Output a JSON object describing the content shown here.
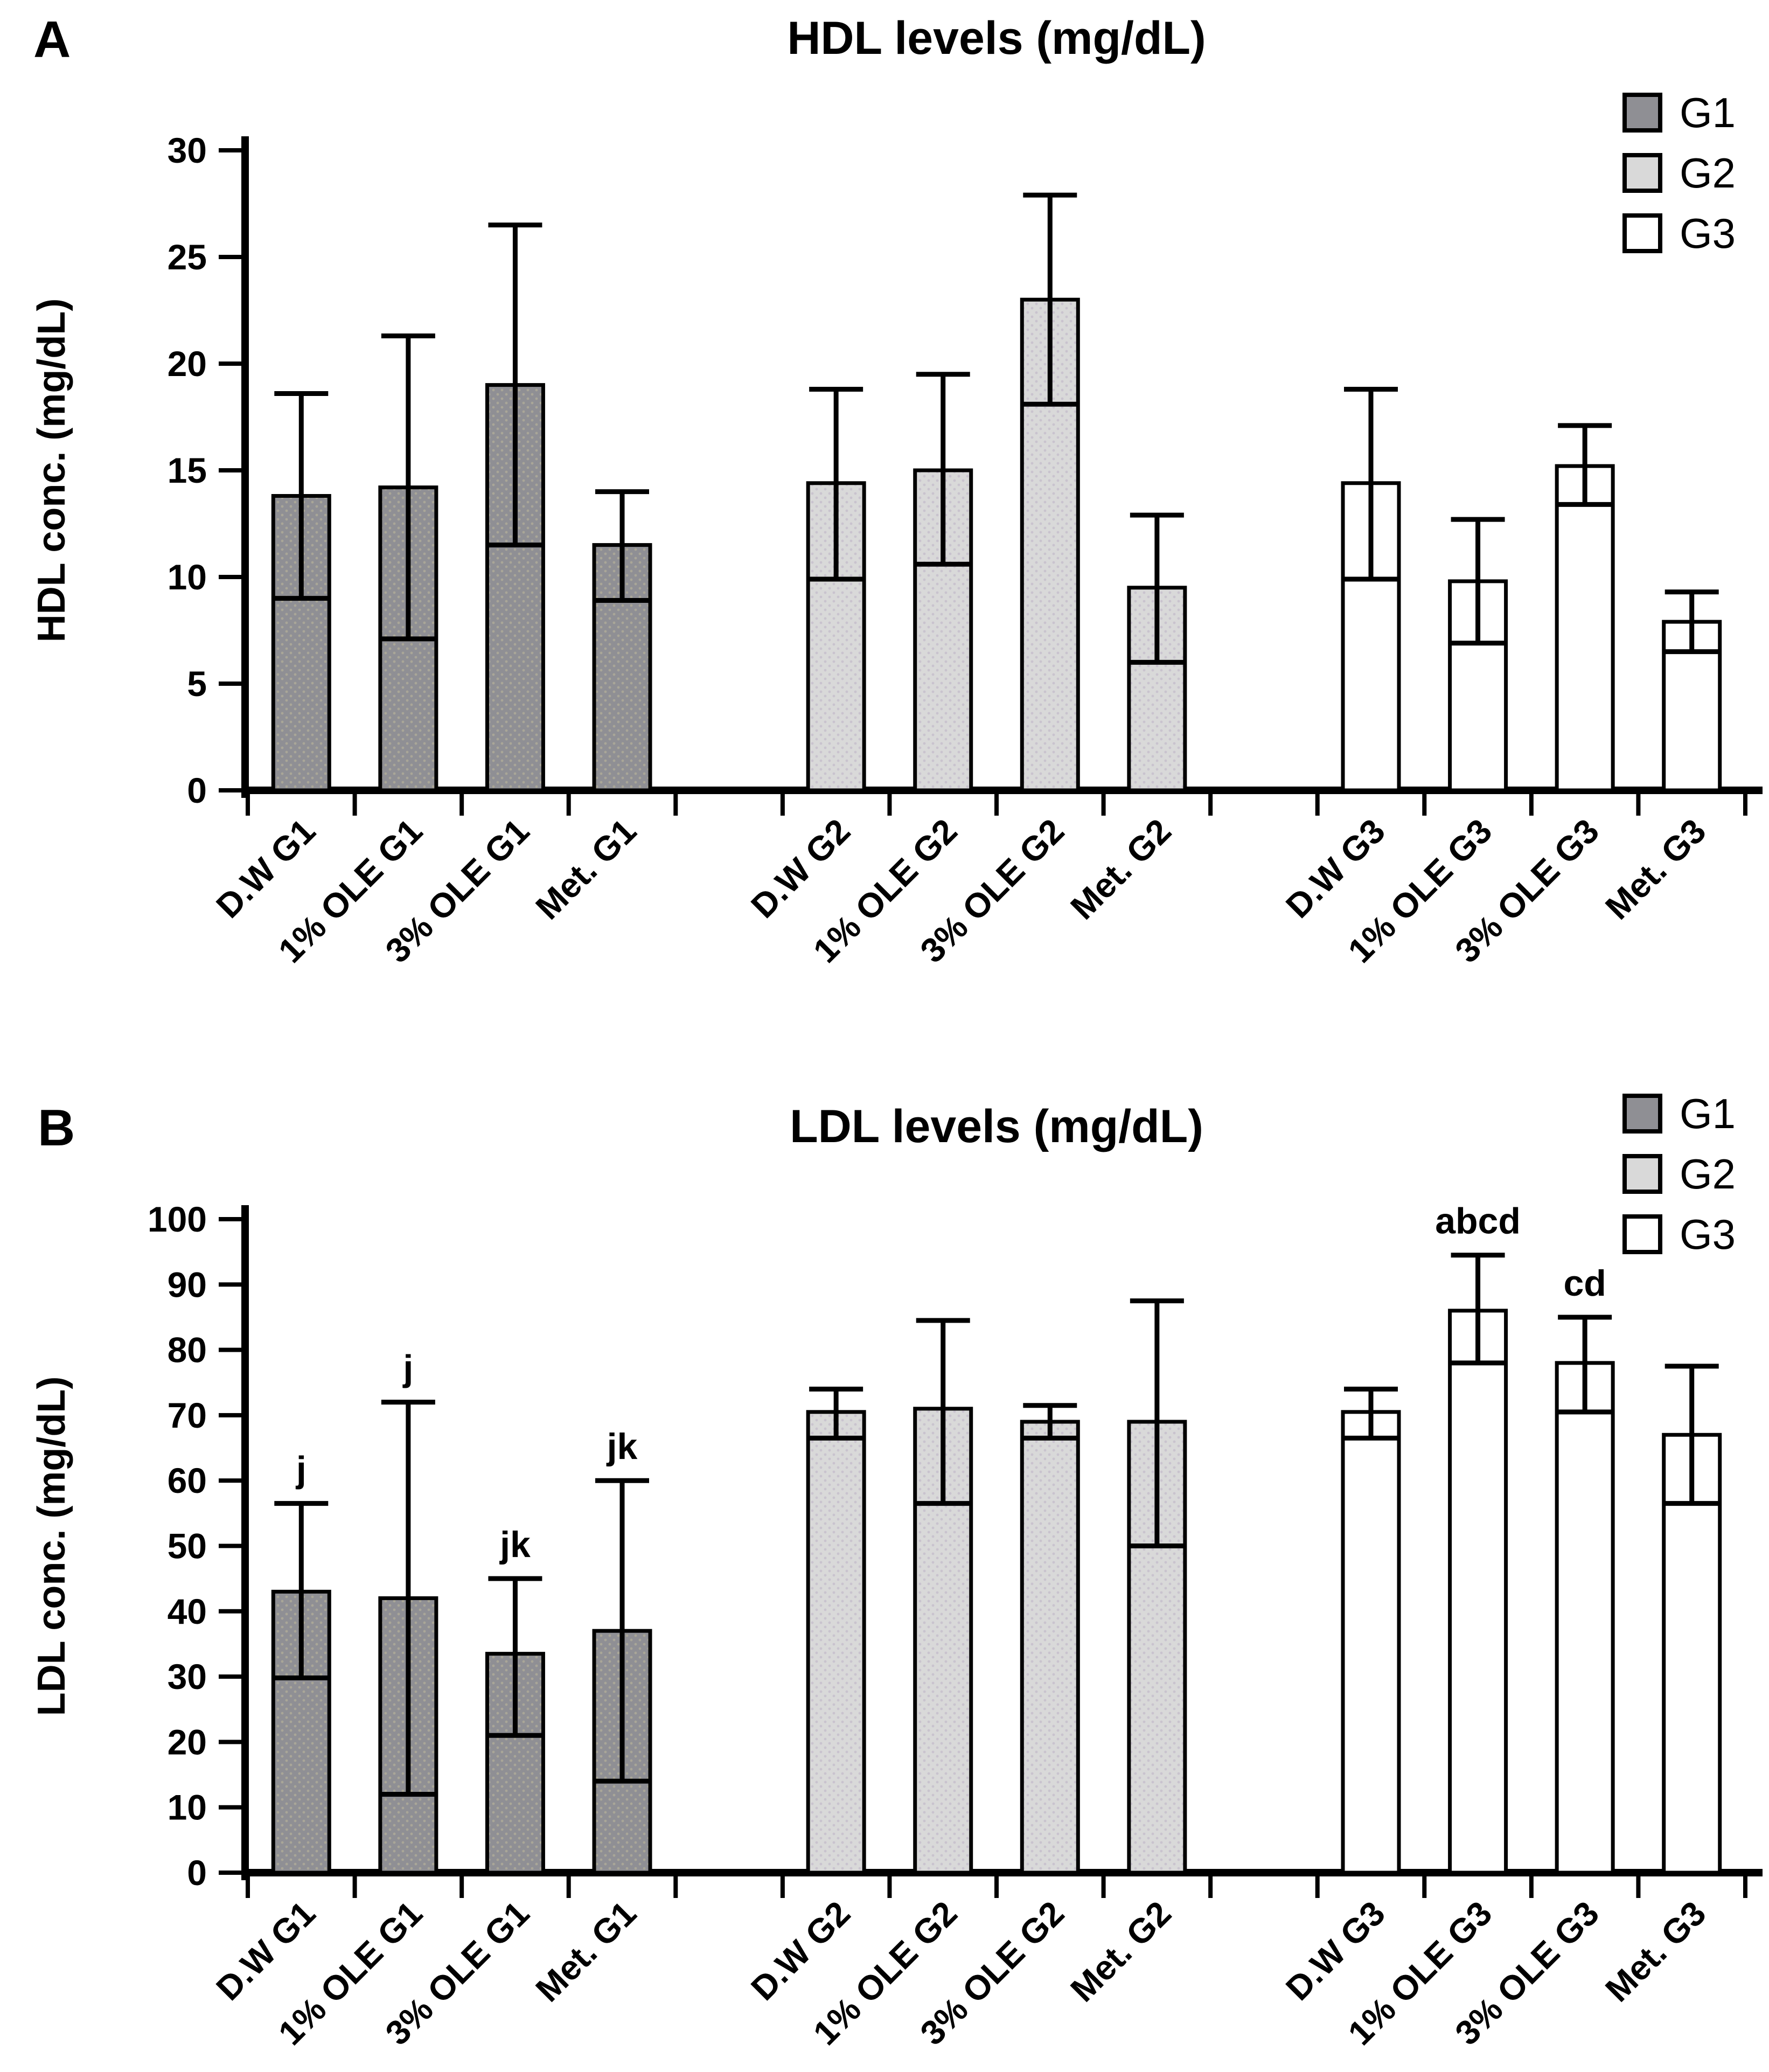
{
  "colors": {
    "G1": "#8f8f94",
    "G1_dot": "#a9a698",
    "G2": "#d9d9d9",
    "G2_dot": "#c9c3ce",
    "G3": "#ffffff",
    "axis": "#000000"
  },
  "chart_data": [
    {
      "type": "bar",
      "panel_letter": "A",
      "title": "HDL levels (mg/dL)",
      "ylabel": "HDL conc. (mg/dL)",
      "ylim": [
        0,
        30
      ],
      "ytick_step": 5,
      "grid": false,
      "legend_position": "top-right",
      "legend": [
        "G1",
        "G2",
        "G3"
      ],
      "bars": [
        {
          "category": "D.W G1",
          "series": "G1",
          "value": 13.8,
          "err_low": 9.0,
          "err_high": 18.6,
          "note": ""
        },
        {
          "category": "1% OLE G1",
          "series": "G1",
          "value": 14.2,
          "err_low": 7.1,
          "err_high": 21.3,
          "note": ""
        },
        {
          "category": "3% OLE G1",
          "series": "G1",
          "value": 19.0,
          "err_low": 11.5,
          "err_high": 26.5,
          "note": ""
        },
        {
          "category": "Met. G1",
          "series": "G1",
          "value": 11.5,
          "err_low": 8.9,
          "err_high": 14.0,
          "note": ""
        },
        {
          "category": "D.W G2",
          "series": "G2",
          "value": 14.4,
          "err_low": 9.9,
          "err_high": 18.8,
          "note": ""
        },
        {
          "category": "1% OLE G2",
          "series": "G2",
          "value": 15.0,
          "err_low": 10.6,
          "err_high": 19.5,
          "note": ""
        },
        {
          "category": "3% OLE G2",
          "series": "G2",
          "value": 23.0,
          "err_low": 18.1,
          "err_high": 27.9,
          "note": ""
        },
        {
          "category": "Met. G2",
          "series": "G2",
          "value": 9.5,
          "err_low": 6.0,
          "err_high": 12.9,
          "note": ""
        },
        {
          "category": "D.W G3",
          "series": "G3",
          "value": 14.4,
          "err_low": 9.9,
          "err_high": 18.8,
          "note": ""
        },
        {
          "category": "1% OLE G3",
          "series": "G3",
          "value": 9.8,
          "err_low": 6.9,
          "err_high": 12.7,
          "note": ""
        },
        {
          "category": "3% OLE G3",
          "series": "G3",
          "value": 15.2,
          "err_low": 13.4,
          "err_high": 17.1,
          "note": ""
        },
        {
          "category": "Met. G3",
          "series": "G3",
          "value": 7.9,
          "err_low": 6.5,
          "err_high": 9.3,
          "note": ""
        }
      ]
    },
    {
      "type": "bar",
      "panel_letter": "B",
      "title": "LDL levels (mg/dL)",
      "ylabel": "LDL conc. (mg/dL)",
      "ylim": [
        0,
        100
      ],
      "ytick_step": 10,
      "grid": false,
      "legend_position": "top-right",
      "legend": [
        "G1",
        "G2",
        "G3"
      ],
      "bars": [
        {
          "category": "D.W G1",
          "series": "G1",
          "value": 43.0,
          "err_low": 29.8,
          "err_high": 56.5,
          "note": "j"
        },
        {
          "category": "1% OLE G1",
          "series": "G1",
          "value": 42.0,
          "err_low": 12.0,
          "err_high": 72.0,
          "note": "j"
        },
        {
          "category": "3% OLE G1",
          "series": "G1",
          "value": 33.5,
          "err_low": 21.0,
          "err_high": 45.0,
          "note": "jk"
        },
        {
          "category": "Met. G1",
          "series": "G1",
          "value": 37.0,
          "err_low": 14.0,
          "err_high": 60.0,
          "note": "jk"
        },
        {
          "category": "D.W G2",
          "series": "G2",
          "value": 70.5,
          "err_low": 66.5,
          "err_high": 74.0,
          "note": ""
        },
        {
          "category": "1% OLE G2",
          "series": "G2",
          "value": 71.0,
          "err_low": 56.5,
          "err_high": 84.5,
          "note": ""
        },
        {
          "category": "3% OLE G2",
          "series": "G2",
          "value": 69.0,
          "err_low": 66.5,
          "err_high": 71.5,
          "note": ""
        },
        {
          "category": "Met. G2",
          "series": "G2",
          "value": 69.0,
          "err_low": 50.0,
          "err_high": 87.5,
          "note": ""
        },
        {
          "category": "D.W G3",
          "series": "G3",
          "value": 70.5,
          "err_low": 66.5,
          "err_high": 74.0,
          "note": ""
        },
        {
          "category": "1% OLE G3",
          "series": "G3",
          "value": 86.0,
          "err_low": 78.0,
          "err_high": 94.5,
          "note": "abcd"
        },
        {
          "category": "3% OLE G3",
          "series": "G3",
          "value": 78.0,
          "err_low": 70.5,
          "err_high": 85.0,
          "note": "cd"
        },
        {
          "category": "Met. G3",
          "series": "G3",
          "value": 67.0,
          "err_low": 56.5,
          "err_high": 77.5,
          "note": ""
        }
      ]
    }
  ]
}
